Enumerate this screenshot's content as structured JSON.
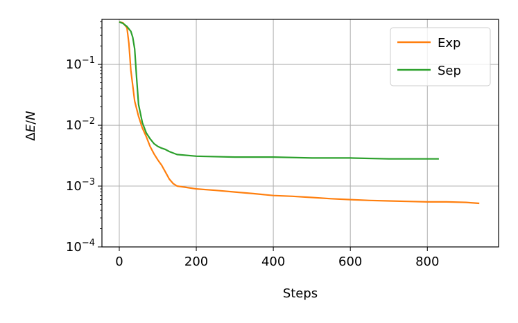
{
  "chart_data": {
    "type": "line",
    "title": "",
    "xlabel": "Steps",
    "ylabel": "ΔE/N",
    "xlim": [
      -45,
      985
    ],
    "ylim": [
      0.0001,
      0.55
    ],
    "yscale": "log",
    "grid": true,
    "legend_position": "top-right",
    "x_ticks": [
      0,
      200,
      400,
      600,
      800
    ],
    "x_tick_labels": [
      "0",
      "200",
      "400",
      "600",
      "800"
    ],
    "y_ticks": [
      0.0001,
      0.001,
      0.01,
      0.1
    ],
    "y_tick_labels": [
      {
        "base": "10",
        "exp": "−4"
      },
      {
        "base": "10",
        "exp": "−3"
      },
      {
        "base": "10",
        "exp": "−2"
      },
      {
        "base": "10",
        "exp": "−1"
      }
    ],
    "series": [
      {
        "name": "Exp",
        "color": "#ff7f0e",
        "x": [
          0,
          10,
          20,
          25,
          30,
          40,
          50,
          60,
          70,
          80,
          90,
          100,
          110,
          120,
          130,
          140,
          150,
          175,
          200,
          250,
          300,
          350,
          400,
          450,
          500,
          550,
          600,
          650,
          700,
          750,
          800,
          850,
          900,
          935
        ],
        "y": [
          0.5,
          0.48,
          0.4,
          0.22,
          0.08,
          0.025,
          0.014,
          0.009,
          0.0065,
          0.0045,
          0.0034,
          0.0027,
          0.0022,
          0.0017,
          0.0013,
          0.0011,
          0.001,
          0.00095,
          0.0009,
          0.00085,
          0.0008,
          0.00075,
          0.0007,
          0.00068,
          0.00065,
          0.00062,
          0.0006,
          0.00058,
          0.00057,
          0.00056,
          0.00055,
          0.00055,
          0.00054,
          0.00052
        ]
      },
      {
        "name": "Sep",
        "color": "#2ca02c",
        "x": [
          0,
          10,
          20,
          30,
          35,
          40,
          45,
          50,
          60,
          70,
          80,
          90,
          100,
          110,
          120,
          130,
          150,
          200,
          300,
          400,
          500,
          600,
          700,
          800,
          830
        ],
        "y": [
          0.5,
          0.47,
          0.42,
          0.35,
          0.28,
          0.18,
          0.06,
          0.022,
          0.011,
          0.0075,
          0.006,
          0.005,
          0.0045,
          0.0042,
          0.004,
          0.0037,
          0.0033,
          0.0031,
          0.003,
          0.003,
          0.0029,
          0.0029,
          0.0028,
          0.0028,
          0.0028
        ]
      }
    ]
  }
}
